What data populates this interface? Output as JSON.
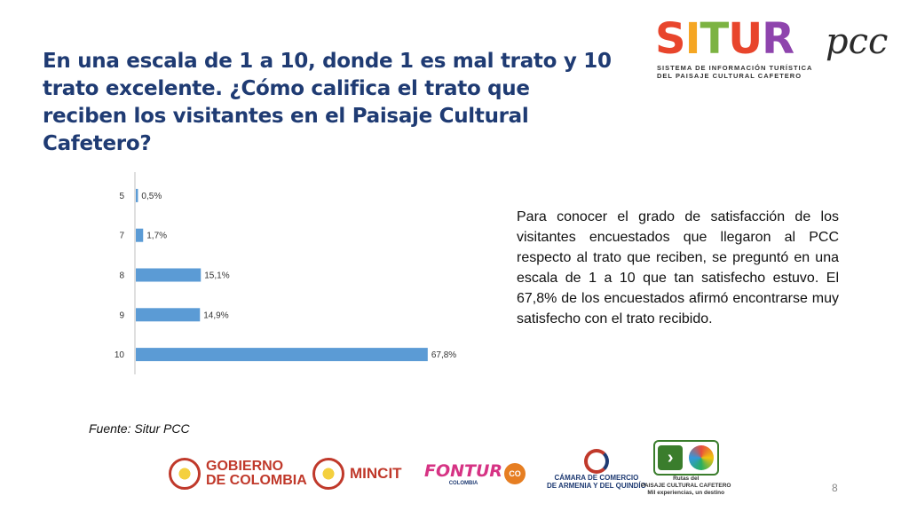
{
  "header": {
    "title": "En una escala de 1 a 10, donde 1 es mal trato y 10 trato excelente. ¿Cómo califica el trato que reciben los visitantes en el Paisaje Cultural Cafetero?"
  },
  "logo": {
    "word_letters": [
      "S",
      "I",
      "T",
      "U",
      "R"
    ],
    "word_colors": [
      "#e8452c",
      "#f5a623",
      "#7cb342",
      "#e8452c",
      "#8e44ad"
    ],
    "suffix": "pcc",
    "subtitle_line1": "SISTEMA DE INFORMACIÓN TURÍSTICA",
    "subtitle_line2": "DEL PAISAJE CULTURAL CAFETERO"
  },
  "chart_data": {
    "type": "bar",
    "orientation": "horizontal",
    "categories": [
      "5",
      "7",
      "8",
      "9",
      "10"
    ],
    "values": [
      0.5,
      1.7,
      15.1,
      14.9,
      67.8
    ],
    "data_labels": [
      "0,5%",
      "1,7%",
      "15,1%",
      "14,9%",
      "67,8%"
    ],
    "xlim": [
      0,
      80
    ],
    "bar_color": "#5b9bd5",
    "grid": false,
    "title": "",
    "xlabel": "",
    "ylabel": ""
  },
  "description": "Para conocer el grado de satisfacción de los visitantes encuestados que llegaron al PCC respecto al trato que reciben, se preguntó en una escala de 1 a 10 que tan satisfecho estuvo. El 67,8% de los encuestados afirmó encontrarse muy satisfecho con el trato recibido.",
  "source": "Fuente: Situr PCC",
  "page_number": "8",
  "footer_logos": {
    "gobierno_line1": "GOBIERNO",
    "gobierno_line2": "DE COLOMBIA",
    "mincit": "MINCIT",
    "fontur": "FONTUR",
    "fontur_sub": "COLOMBIA",
    "co_badge": "CO",
    "camara_line1": "CÁMARA DE COMERCIO",
    "camara_line2": "DE ARMENIA Y DEL QUINDÍO",
    "rutas_line1": "Rutas del",
    "rutas_line2": "PAISAJE CULTURAL CAFETERO",
    "rutas_line3": "Mil experiencias, un destino"
  }
}
